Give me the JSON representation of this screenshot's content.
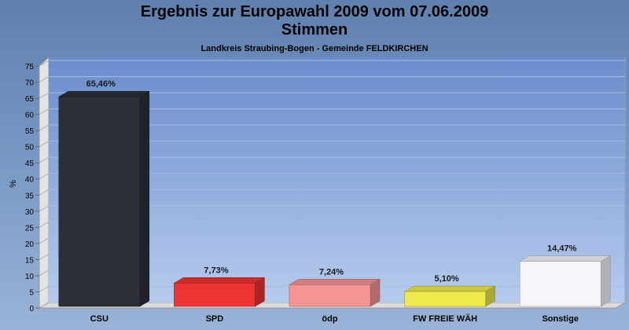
{
  "chart_data": {
    "type": "bar",
    "title": "Ergebnis zur Europawahl 2009 vom 07.06.2009",
    "title2": "Stimmen",
    "subtitle": "Landkreis Straubing-Bogen - Gemeinde FELDKIRCHEN",
    "ylabel": "%",
    "ylim": [
      0,
      75
    ],
    "yticks": [
      0,
      5,
      10,
      15,
      20,
      25,
      30,
      35,
      40,
      45,
      50,
      55,
      60,
      65,
      70,
      75
    ],
    "categories": [
      "CSU",
      "SPD",
      "ödp",
      "FW FREIE WÄH",
      "Sonstige"
    ],
    "values": [
      65.46,
      7.73,
      7.24,
      5.1,
      14.47
    ],
    "value_labels": [
      "65,46%",
      "7,73%",
      "7,24%",
      "5,10%",
      "14,47%"
    ],
    "colors": [
      "#2b2f38",
      "#ee3333",
      "#f49595",
      "#eeea4c",
      "#f5f6fb"
    ],
    "grid": true,
    "legend": "none"
  }
}
